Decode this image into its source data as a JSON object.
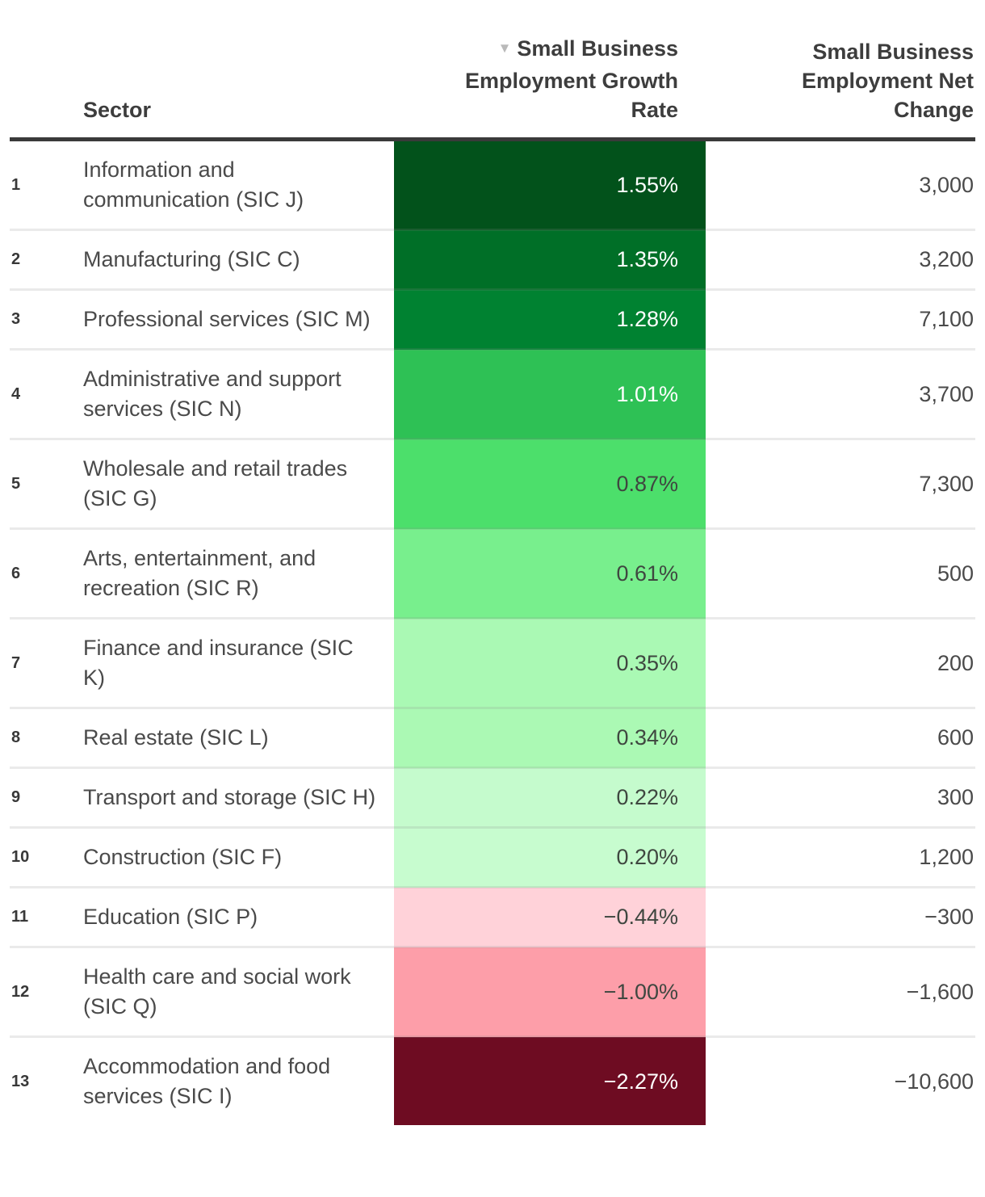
{
  "table": {
    "headers": {
      "sector": "Sector",
      "growth_lines": [
        "Small Business",
        "Employment Growth",
        "Rate"
      ],
      "net_lines": [
        "Small Business",
        "Employment Net",
        "Change"
      ],
      "sort_icon": "▼"
    },
    "rows": [
      {
        "rank": "1",
        "sector": "Information and communication (SIC J)",
        "growth": "1.55%",
        "net": "3,000",
        "bg": "#02521b",
        "fg": "#ffffff"
      },
      {
        "rank": "2",
        "sector": "Manufacturing (SIC C)",
        "growth": "1.35%",
        "net": "3,200",
        "bg": "#006f27",
        "fg": "#ffffff"
      },
      {
        "rank": "3",
        "sector": "Professional services (SIC M)",
        "growth": "1.28%",
        "net": "7,100",
        "bg": "#008231",
        "fg": "#ffffff"
      },
      {
        "rank": "4",
        "sector": "Administrative and support services (SIC N)",
        "growth": "1.01%",
        "net": "3,700",
        "bg": "#2ec155",
        "fg": "#ffffff"
      },
      {
        "rank": "5",
        "sector": "Wholesale and retail trades (SIC G)",
        "growth": "0.87%",
        "net": "7,300",
        "bg": "#4cdf6b",
        "fg": "#3f4740"
      },
      {
        "rank": "6",
        "sector": "Arts, entertainment, and recreation (SIC R)",
        "growth": "0.61%",
        "net": "500",
        "bg": "#78ef8d",
        "fg": "#3f4740"
      },
      {
        "rank": "7",
        "sector": "Finance and insurance (SIC K)",
        "growth": "0.35%",
        "net": "200",
        "bg": "#aaf9b4",
        "fg": "#3f4740"
      },
      {
        "rank": "8",
        "sector": "Real estate (SIC L)",
        "growth": "0.34%",
        "net": "600",
        "bg": "#abf9b4",
        "fg": "#3f4740"
      },
      {
        "rank": "9",
        "sector": "Transport and storage (SIC H)",
        "growth": "0.22%",
        "net": "300",
        "bg": "#c5fbcd",
        "fg": "#3f4740"
      },
      {
        "rank": "10",
        "sector": "Construction (SIC F)",
        "growth": "0.20%",
        "net": "1,200",
        "bg": "#c7fccf",
        "fg": "#3f4740"
      },
      {
        "rank": "11",
        "sector": "Education (SIC P)",
        "growth": "−0.44%",
        "net": "−300",
        "bg": "#ffd2d9",
        "fg": "#3f4740"
      },
      {
        "rank": "12",
        "sector": "Health care and social work (SIC Q)",
        "growth": "−1.00%",
        "net": "−1,600",
        "bg": "#fd9ea9",
        "fg": "#3f4740"
      },
      {
        "rank": "13",
        "sector": "Accommodation and food services (SIC I)",
        "growth": "−2.27%",
        "net": "−10,600",
        "bg": "#6e0c22",
        "fg": "#ffffff"
      }
    ]
  },
  "colors": {
    "header_text": "#3d3d3d",
    "header_rule": "#3a3a3a",
    "sort_icon": "#b9b9b9",
    "body_text": "#4a4a4a",
    "positive_dark": "#02521b",
    "negative_dark": "#6e0c22"
  },
  "chart_data": {
    "type": "table",
    "subtype": "heatmap-table",
    "columns": [
      "Sector",
      "Small Business Employment Growth Rate",
      "Small Business Employment Net Change"
    ],
    "sort": {
      "column": "Small Business Employment Growth Rate",
      "direction": "desc"
    },
    "rows": [
      {
        "rank": 1,
        "sector": "Information and communication (SIC J)",
        "growth_rate_pct": 1.55,
        "net_change": 3000
      },
      {
        "rank": 2,
        "sector": "Manufacturing (SIC C)",
        "growth_rate_pct": 1.35,
        "net_change": 3200
      },
      {
        "rank": 3,
        "sector": "Professional services (SIC M)",
        "growth_rate_pct": 1.28,
        "net_change": 7100
      },
      {
        "rank": 4,
        "sector": "Administrative and support services (SIC N)",
        "growth_rate_pct": 1.01,
        "net_change": 3700
      },
      {
        "rank": 5,
        "sector": "Wholesale and retail trades (SIC G)",
        "growth_rate_pct": 0.87,
        "net_change": 7300
      },
      {
        "rank": 6,
        "sector": "Arts, entertainment, and recreation (SIC R)",
        "growth_rate_pct": 0.61,
        "net_change": 500
      },
      {
        "rank": 7,
        "sector": "Finance and insurance (SIC K)",
        "growth_rate_pct": 0.35,
        "net_change": 200
      },
      {
        "rank": 8,
        "sector": "Real estate (SIC L)",
        "growth_rate_pct": 0.34,
        "net_change": 600
      },
      {
        "rank": 9,
        "sector": "Transport and storage (SIC H)",
        "growth_rate_pct": 0.22,
        "net_change": 300
      },
      {
        "rank": 10,
        "sector": "Construction (SIC F)",
        "growth_rate_pct": 0.2,
        "net_change": 1200
      },
      {
        "rank": 11,
        "sector": "Education (SIC P)",
        "growth_rate_pct": -0.44,
        "net_change": -300
      },
      {
        "rank": 12,
        "sector": "Health care and social work (SIC Q)",
        "growth_rate_pct": -1.0,
        "net_change": -1600
      },
      {
        "rank": 13,
        "sector": "Accommodation and food services (SIC I)",
        "growth_rate_pct": -2.27,
        "net_change": -10600
      }
    ],
    "color_scale": "diverging green (positive growth) to red (negative growth), darker = larger magnitude",
    "legend_position": "none",
    "grid": "horizontal row separators only"
  }
}
